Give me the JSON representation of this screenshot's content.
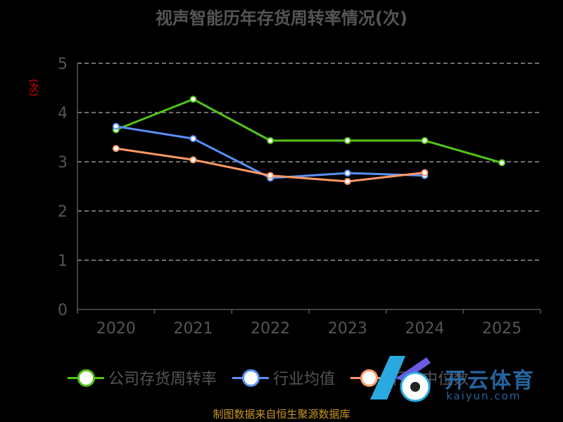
{
  "chart_data": {
    "type": "line",
    "title": "视声智能历年存货周转率情况(次)",
    "ylabel": "(次)",
    "categories": [
      "2020",
      "2021",
      "2022",
      "2023",
      "2024",
      "2025"
    ],
    "ylim": [
      0,
      5
    ],
    "yticks": [
      0,
      1,
      2,
      3,
      4,
      5
    ],
    "grid": true,
    "legend_position": "bottom",
    "series": [
      {
        "name": "公司存货周转率",
        "color": "#52c41a",
        "values": [
          3.65,
          4.27,
          3.43,
          3.43,
          3.43,
          2.98
        ]
      },
      {
        "name": "行业均值",
        "color": "#5b8ff9",
        "values": [
          3.72,
          3.47,
          2.67,
          2.77,
          2.72,
          null
        ]
      },
      {
        "name": "行业中位数",
        "color": "#ff9966",
        "values": [
          3.27,
          3.04,
          2.72,
          2.6,
          2.78,
          null
        ]
      }
    ]
  },
  "source_text": "制图数据来自恒生聚源数据库",
  "watermark": {
    "text": "开云体育",
    "sub": "kaiyun.com"
  }
}
